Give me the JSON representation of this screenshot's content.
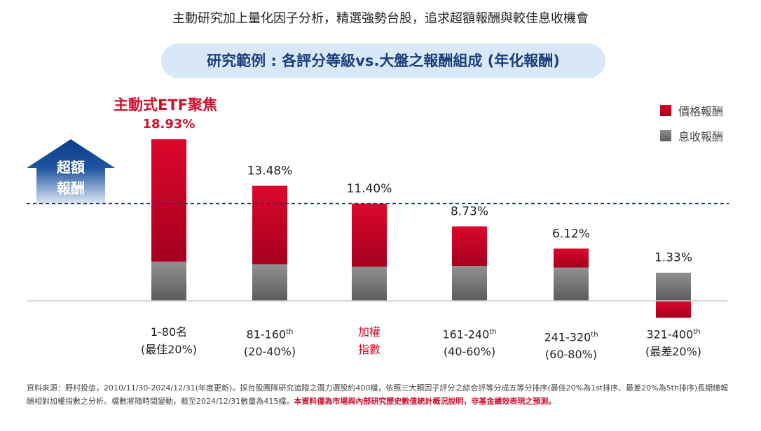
{
  "headline": "主動研究加上量化因子分析，精選強勢台股，追求超額報酬與較佳息收機會",
  "subtitle_pill": "研究範例 : 各評分等級vs.大盤之報酬組成 (年化報酬)",
  "focus_label": "主動式ETF聚焦",
  "excess_arrow_label": [
    "超額",
    "報酬"
  ],
  "legend": [
    {
      "name": "價格報酬",
      "color": "#d0102d"
    },
    {
      "name": "息收報酬",
      "color": "#777777"
    }
  ],
  "chart_data": {
    "type": "bar",
    "stacked": true,
    "title": "研究範例 : 各評分等級vs.大盤之報酬組成 (年化報酬)",
    "xlabel": "",
    "ylabel": "",
    "ylim": [
      -2.5,
      20
    ],
    "grid": false,
    "legend_position": "top-right",
    "reference_line": {
      "label": "加權指數",
      "value": 11.4,
      "style": "dotted"
    },
    "categories": [
      {
        "line1": "1-80名",
        "sup": "",
        "line2": "(最佳20%)",
        "highlight": false
      },
      {
        "line1": "81-160",
        "sup": "th",
        "line2": "(20-40%)",
        "highlight": false
      },
      {
        "line1": "加權",
        "sup": "",
        "line2": "指數",
        "highlight": true
      },
      {
        "line1": "161-240",
        "sup": "th",
        "line2": "(40-60%)",
        "highlight": false
      },
      {
        "line1": "241-320",
        "sup": "th",
        "line2": "(60-80%)",
        "highlight": false
      },
      {
        "line1": "321-400",
        "sup": "th",
        "line2": "(最差20%)",
        "highlight": false
      }
    ],
    "series": [
      {
        "name": "息收報酬",
        "values": [
          4.6,
          4.3,
          4.0,
          4.1,
          3.9,
          3.3
        ]
      },
      {
        "name": "價格報酬",
        "values": [
          14.33,
          9.18,
          7.4,
          4.63,
          2.22,
          -1.97
        ]
      }
    ],
    "totals": [
      18.93,
      13.48,
      11.4,
      8.73,
      6.12,
      1.33
    ],
    "total_labels": [
      "18.93%",
      "13.48%",
      "11.40%",
      "8.73%",
      "6.12%",
      "1.33%"
    ]
  },
  "footnote": {
    "text": "資料來源：野村投信，2010/11/30-2024/12/31(年度更新)。採台股團隊研究追蹤之潛力選股約400檔，依照三大類因子評分之綜合評等分成五等分排序(最佳20%為1st排序、最差20%為5th排序)長期總報酬相對加權指數之分析。檔數將隨時間變動，截至2024/12/31數量為415檔。",
    "warning": "本資料僅為市場與內部研究歷史數值統計概況說明，非基金績效表現之預測。"
  }
}
